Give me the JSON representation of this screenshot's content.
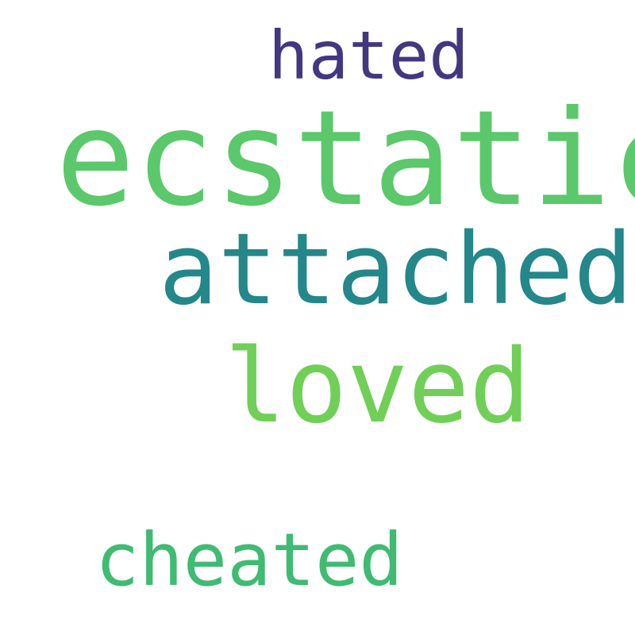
{
  "wordcloud": {
    "words": [
      {
        "text": "hated",
        "color": "#433880"
      },
      {
        "text": "ecstatic",
        "color": "#5bc86b"
      },
      {
        "text": "attached",
        "color": "#24878a"
      },
      {
        "text": "loved",
        "color": "#70cf57"
      },
      {
        "text": "cheated",
        "color": "#3fbb72"
      }
    ]
  }
}
